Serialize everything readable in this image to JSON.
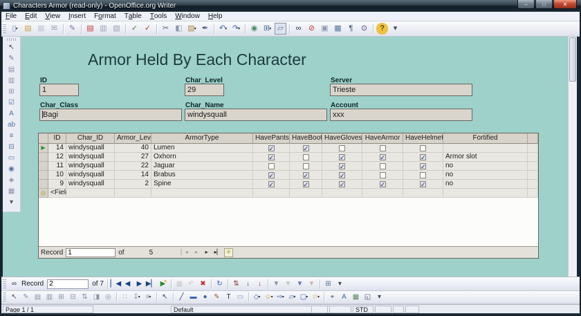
{
  "window": {
    "title": "Characters Armor (read-only) - OpenOffice.org Writer",
    "controls": [
      {
        "name": "minimize",
        "glyph": "–"
      },
      {
        "name": "maximize",
        "glyph": "□"
      },
      {
        "name": "close",
        "glyph": "✕"
      }
    ]
  },
  "menu": {
    "items": [
      {
        "label": "File",
        "accel": 0
      },
      {
        "label": "Edit",
        "accel": 0
      },
      {
        "label": "View",
        "accel": 0
      },
      {
        "label": "Insert",
        "accel": 0
      },
      {
        "label": "Format",
        "accel": 1
      },
      {
        "label": "Table",
        "accel": 1
      },
      {
        "label": "Tools",
        "accel": 0
      },
      {
        "label": "Window",
        "accel": 0
      },
      {
        "label": "Help",
        "accel": 0
      }
    ]
  },
  "main_toolbar": {
    "icons": [
      {
        "n": "new-document",
        "g": "▯",
        "c": "#7d8eb8",
        "dd": true
      },
      {
        "n": "open",
        "g": "▤",
        "c": "#c9a44c"
      },
      {
        "n": "save",
        "g": "▦",
        "c": "#8f98ad",
        "dis": true
      },
      {
        "n": "email",
        "g": "✉",
        "c": "#95a0b5"
      },
      {
        "sep": true
      },
      {
        "n": "edit-file",
        "g": "✎",
        "c": "#8a6ab0"
      },
      {
        "sep": true
      },
      {
        "n": "export-pdf",
        "g": "▤",
        "c": "#c43b3b"
      },
      {
        "n": "print",
        "g": "▥",
        "c": "#9aa3b5"
      },
      {
        "n": "page-preview",
        "g": "▧",
        "c": "#9aa3b5"
      },
      {
        "sep": true
      },
      {
        "n": "spellcheck",
        "g": "✓",
        "c": "#3f7f3f"
      },
      {
        "n": "autospellcheck",
        "g": "✓",
        "c": "#b04040"
      },
      {
        "sep": true
      },
      {
        "n": "cut",
        "g": "✂",
        "c": "#5a5f6b"
      },
      {
        "n": "copy",
        "g": "◧",
        "c": "#8f98ad"
      },
      {
        "n": "paste",
        "g": "▨",
        "c": "#b08c4c",
        "dd": true
      },
      {
        "n": "clone-formatting",
        "g": "✒",
        "c": "#4a5580"
      },
      {
        "sep": true
      },
      {
        "n": "undo",
        "g": "↶",
        "c": "#3a66aa",
        "dd": true
      },
      {
        "n": "redo",
        "g": "↷",
        "c": "#3a66aa",
        "dd": true
      },
      {
        "sep": true
      },
      {
        "n": "hyperlink",
        "g": "◉",
        "c": "#4a8a6a"
      },
      {
        "n": "insert-table",
        "g": "⊞",
        "c": "#56749a",
        "dd": true
      },
      {
        "n": "draw-functions",
        "g": "▱",
        "c": "#56749a",
        "pressed": true
      },
      {
        "sep": true
      },
      {
        "n": "find-replace",
        "g": "∞",
        "c": "#2a2f3a"
      },
      {
        "n": "navigator",
        "g": "⊘",
        "c": "#c03a3a"
      },
      {
        "n": "gallery",
        "g": "▣",
        "c": "#8f98ad"
      },
      {
        "n": "data-sources",
        "g": "▦",
        "c": "#56749a"
      },
      {
        "n": "formatting-marks",
        "g": "¶",
        "c": "#3a4a7a"
      },
      {
        "n": "zoom",
        "g": "⊙",
        "c": "#3a4a7a"
      },
      {
        "sep": true
      },
      {
        "n": "help",
        "g": "?",
        "c": "#1a1a1a",
        "bg": "#f0c040"
      },
      {
        "n": "toolbar-overflow",
        "g": "▾",
        "c": "#444a58"
      }
    ]
  },
  "form_controls_toolbar": {
    "icons": [
      {
        "n": "select",
        "g": "↖",
        "c": "#3a3f4a"
      },
      {
        "n": "design-mode",
        "g": "✎",
        "c": "#6a7a9a"
      },
      {
        "n": "control-properties",
        "g": "▤",
        "c": "#8a93a8"
      },
      {
        "n": "form-properties",
        "g": "▥",
        "c": "#8a93a8"
      },
      {
        "n": "form-navigator",
        "g": "⊞",
        "c": "#8a93a8"
      },
      {
        "n": "check-box",
        "g": "☑",
        "c": "#56749a"
      },
      {
        "n": "label-field",
        "g": "A",
        "c": "#56749a"
      },
      {
        "n": "text-box",
        "g": "ab",
        "c": "#56749a"
      },
      {
        "n": "list-box",
        "g": "≡",
        "c": "#56749a"
      },
      {
        "n": "combo-box",
        "g": "⊟",
        "c": "#56749a"
      },
      {
        "n": "push-button",
        "g": "▭",
        "c": "#56749a"
      },
      {
        "n": "option-button",
        "g": "◉",
        "c": "#56749a"
      },
      {
        "n": "more-controls",
        "g": "◈",
        "c": "#8a93a8"
      },
      {
        "n": "form-design",
        "g": "▦",
        "c": "#8a93a8"
      },
      {
        "n": "toolbar-overflow",
        "g": "▾",
        "c": "#444a58"
      }
    ]
  },
  "document": {
    "title": "Armor Held By Each Character",
    "fields": [
      {
        "label": "ID",
        "value": "1"
      },
      {
        "label": "Char_Level",
        "value": "29"
      },
      {
        "label": "Server",
        "value": "Trieste"
      },
      {
        "label": "Char_Class",
        "value": "Bagi"
      },
      {
        "label": "Char_Name",
        "value": "windysquall"
      },
      {
        "label": "Account",
        "value": "xxx"
      }
    ],
    "table": {
      "columns": [
        "ID",
        "Char_ID",
        "Armor_Level",
        "ArmorType",
        "HavePants",
        "HaveBoots",
        "HaveGloves",
        "HaveArmor",
        "HaveHelmet",
        "Fortified"
      ],
      "rows": [
        {
          "id": "14",
          "char_id": "windysquall",
          "armor_level": "40",
          "armor_type": "Lumen",
          "checks": [
            true,
            true,
            false,
            false,
            false
          ],
          "fortified": "",
          "current": true
        },
        {
          "id": "12",
          "char_id": "windysquall",
          "armor_level": "27",
          "armor_type": "Oxhorn",
          "checks": [
            true,
            false,
            true,
            true,
            true
          ],
          "fortified": "Armor slot",
          "current": false
        },
        {
          "id": "11",
          "char_id": "windysquall",
          "armor_level": "22",
          "armor_type": "Jaguar",
          "checks": [
            false,
            false,
            true,
            false,
            true
          ],
          "fortified": "no",
          "current": false
        },
        {
          "id": "10",
          "char_id": "windysquall",
          "armor_level": "14",
          "armor_type": "Brabus",
          "checks": [
            true,
            true,
            true,
            false,
            false
          ],
          "fortified": "no",
          "current": false
        },
        {
          "id": "9",
          "char_id": "windysquall",
          "armor_level": "2",
          "armor_type": "Spine",
          "checks": [
            true,
            true,
            true,
            true,
            true
          ],
          "fortified": "no",
          "current": false
        }
      ],
      "new_row_label": "<Field>",
      "navigator": {
        "record_label": "Record",
        "value": "1",
        "of_label": "of",
        "total": "5",
        "buttons": [
          {
            "n": "first-record",
            "g": "▏◂",
            "c": "#9a9a9a"
          },
          {
            "n": "previous-record",
            "g": "◂",
            "c": "#9a9a9a"
          },
          {
            "n": "next-record",
            "g": "▸",
            "c": "#222222"
          },
          {
            "n": "last-record",
            "g": "▸▏",
            "c": "#222222"
          },
          {
            "n": "new-record",
            "g": "✳",
            "c": "#9a9a2a",
            "boxed": true
          }
        ]
      }
    }
  },
  "form_navigation": {
    "find_icon": {
      "n": "find-record",
      "g": "∞",
      "c": "#23303f"
    },
    "record_label": "Record",
    "value": "2",
    "of_total": "of 7",
    "icons": [
      {
        "sep": true
      },
      {
        "n": "first-record",
        "g": "▏◀",
        "c": "#17407f"
      },
      {
        "n": "previous-record",
        "g": "◀",
        "c": "#17407f"
      },
      {
        "n": "next-record",
        "g": "▶",
        "c": "#17407f"
      },
      {
        "n": "last-record",
        "g": "▶▏",
        "c": "#17407f"
      },
      {
        "n": "new-record",
        "g": "▶",
        "c": "#2e8b2e",
        "star": true
      },
      {
        "sep": true
      },
      {
        "n": "save-record",
        "g": "▦",
        "c": "#9a9a9a",
        "dis": true
      },
      {
        "n": "undo-data-entry",
        "g": "↶",
        "c": "#b08a50",
        "dis": true
      },
      {
        "n": "delete-record",
        "g": "✖",
        "c": "#c22a2a"
      },
      {
        "sep": true
      },
      {
        "n": "refresh",
        "g": "↻",
        "c": "#2a55c0"
      },
      {
        "sep": true
      },
      {
        "n": "sort",
        "g": "⇅",
        "c": "#8a3a3a"
      },
      {
        "n": "sort-ascending",
        "g": "↓",
        "c": "#3a55a0"
      },
      {
        "n": "sort-descending",
        "g": "↓",
        "c": "#a03a3a"
      },
      {
        "sep": true
      },
      {
        "n": "auto-filter",
        "g": "▼",
        "c": "#8a93a8"
      },
      {
        "n": "apply-filter",
        "g": "▼",
        "c": "#7a9a7a",
        "dis": true
      },
      {
        "n": "form-based-filters",
        "g": "▼",
        "c": "#6a7ab0"
      },
      {
        "n": "reset-filter",
        "g": "▼",
        "c": "#b06a6a",
        "dis": true
      },
      {
        "sep": true
      },
      {
        "n": "data-source-as-table",
        "g": "⊞",
        "c": "#56749a"
      },
      {
        "n": "toolbar-overflow",
        "g": "▾",
        "c": "#444a58"
      }
    ]
  },
  "form_design_toolbar": {
    "icons": [
      {
        "n": "select",
        "g": "↖",
        "c": "#44506a"
      },
      {
        "n": "design-mode-on-off",
        "g": "✎",
        "c": "#8a93a8"
      },
      {
        "n": "control-properties",
        "g": "▤",
        "c": "#8a93a8"
      },
      {
        "n": "form-properties",
        "g": "▥",
        "c": "#8a93a8"
      },
      {
        "n": "form-navigator",
        "g": "⊞",
        "c": "#8a93a8"
      },
      {
        "n": "add-field",
        "g": "⊟",
        "c": "#8a93a8"
      },
      {
        "n": "activation-order",
        "g": "⇅",
        "c": "#8a93a8"
      },
      {
        "n": "open-in-design-mode",
        "g": "◨",
        "c": "#8a93a8"
      },
      {
        "n": "automatic-control-focus",
        "g": "◎",
        "c": "#8a93a8"
      },
      {
        "sep": true
      },
      {
        "n": "position-and-size",
        "g": "∷",
        "c": "#8a93a8"
      },
      {
        "n": "change-anchor",
        "g": "↧",
        "c": "#8a93a8",
        "dd": true
      },
      {
        "n": "align",
        "g": "≡",
        "c": "#8a93a8",
        "dd": true
      },
      {
        "sep": true
      }
    ]
  },
  "drawing_toolbar": {
    "icons": [
      {
        "n": "select",
        "g": "↖",
        "c": "#2a3f66"
      },
      {
        "sep": true
      },
      {
        "n": "line",
        "g": "╱",
        "c": "#2a3f66"
      },
      {
        "n": "rectangle",
        "g": "▬",
        "c": "#3a62b0"
      },
      {
        "n": "ellipse",
        "g": "●",
        "c": "#3a62b0"
      },
      {
        "n": "freeform-line",
        "g": "✎",
        "c": "#8a5a2a"
      },
      {
        "n": "text",
        "g": "T",
        "c": "#1d2630"
      },
      {
        "n": "callouts",
        "g": "▭",
        "c": "#8a93a8"
      },
      {
        "sep": true
      },
      {
        "n": "basic-shapes",
        "g": "◇",
        "c": "#3a62b0",
        "dd": true
      },
      {
        "n": "symbol-shapes",
        "g": "☺",
        "c": "#c8a020",
        "dd": true
      },
      {
        "n": "block-arrows",
        "g": "⇨",
        "c": "#3a62b0",
        "dd": true
      },
      {
        "n": "flowchart",
        "g": "▱",
        "c": "#3a62b0",
        "dd": true
      },
      {
        "n": "callout-shapes",
        "g": "▢",
        "c": "#3a62b0",
        "dd": true
      },
      {
        "n": "stars",
        "g": "☆",
        "c": "#c8a020",
        "dd": true
      },
      {
        "sep": true
      },
      {
        "n": "points",
        "g": "⌖",
        "c": "#44506a"
      },
      {
        "n": "fontwork-gallery",
        "g": "A",
        "c": "#3a62b0"
      },
      {
        "n": "from-file",
        "g": "▦",
        "c": "#5a8a5a"
      },
      {
        "n": "extrusion",
        "g": "◱",
        "c": "#44506a"
      },
      {
        "n": "toolbar-overflow",
        "g": "▾",
        "c": "#444a58"
      }
    ]
  },
  "status_bar": {
    "segments": [
      "Page 1 / 1",
      "Default",
      "",
      "",
      "STD",
      "",
      "",
      ""
    ]
  },
  "colors": {
    "page_background": "#9dd1ca",
    "field_background": "#d9d5cd",
    "grid_header": "#d7d3cb",
    "current_row_arrow": "#2f8f2f"
  }
}
